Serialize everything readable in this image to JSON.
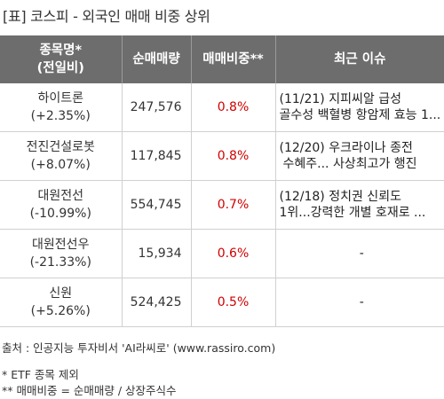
{
  "title": "[표] 코스피 - 외국인 매매 비중 상위",
  "headers": {
    "name_line1": "종목명*",
    "name_line2": "(전일비)",
    "volume": "순매매량",
    "ratio": "매매비중**",
    "issue": "최근 이슈"
  },
  "rows": [
    {
      "name": "하이트론",
      "change": "(+2.35%)",
      "volume": "247,576",
      "ratio": "0.8%",
      "issue_line1": "(11/21) 지피씨알 급성",
      "issue_line2": "골수성 백혈병 항암제 효능 1..."
    },
    {
      "name": "전진건설로봇",
      "change": "(+8.07%)",
      "volume": "117,845",
      "ratio": "0.8%",
      "issue_line1": "(12/20) 우크라이나 종전",
      "issue_line2": "수혜주... 사상최고가 행진"
    },
    {
      "name": "대원전선",
      "change": "(-10.99%)",
      "volume": "554,745",
      "ratio": "0.7%",
      "issue_line1": "(12/18) 정치권 신뢰도",
      "issue_line2": "1위...강력한 개별 호재로 ..."
    },
    {
      "name": "대원전선우",
      "change": "(-21.33%)",
      "volume": "15,934",
      "ratio": "0.6%",
      "issue_line1": "-",
      "issue_line2": ""
    },
    {
      "name": "신원",
      "change": "(+5.26%)",
      "volume": "524,425",
      "ratio": "0.5%",
      "issue_line1": "-",
      "issue_line2": ""
    }
  ],
  "source": "출처 : 인공지능 투자비서 'AI라씨로' (www.rassiro.com)",
  "note1": "* ETF 종목 제외",
  "note2": "** 매매비중 = 순매매량 / 상장주식수"
}
